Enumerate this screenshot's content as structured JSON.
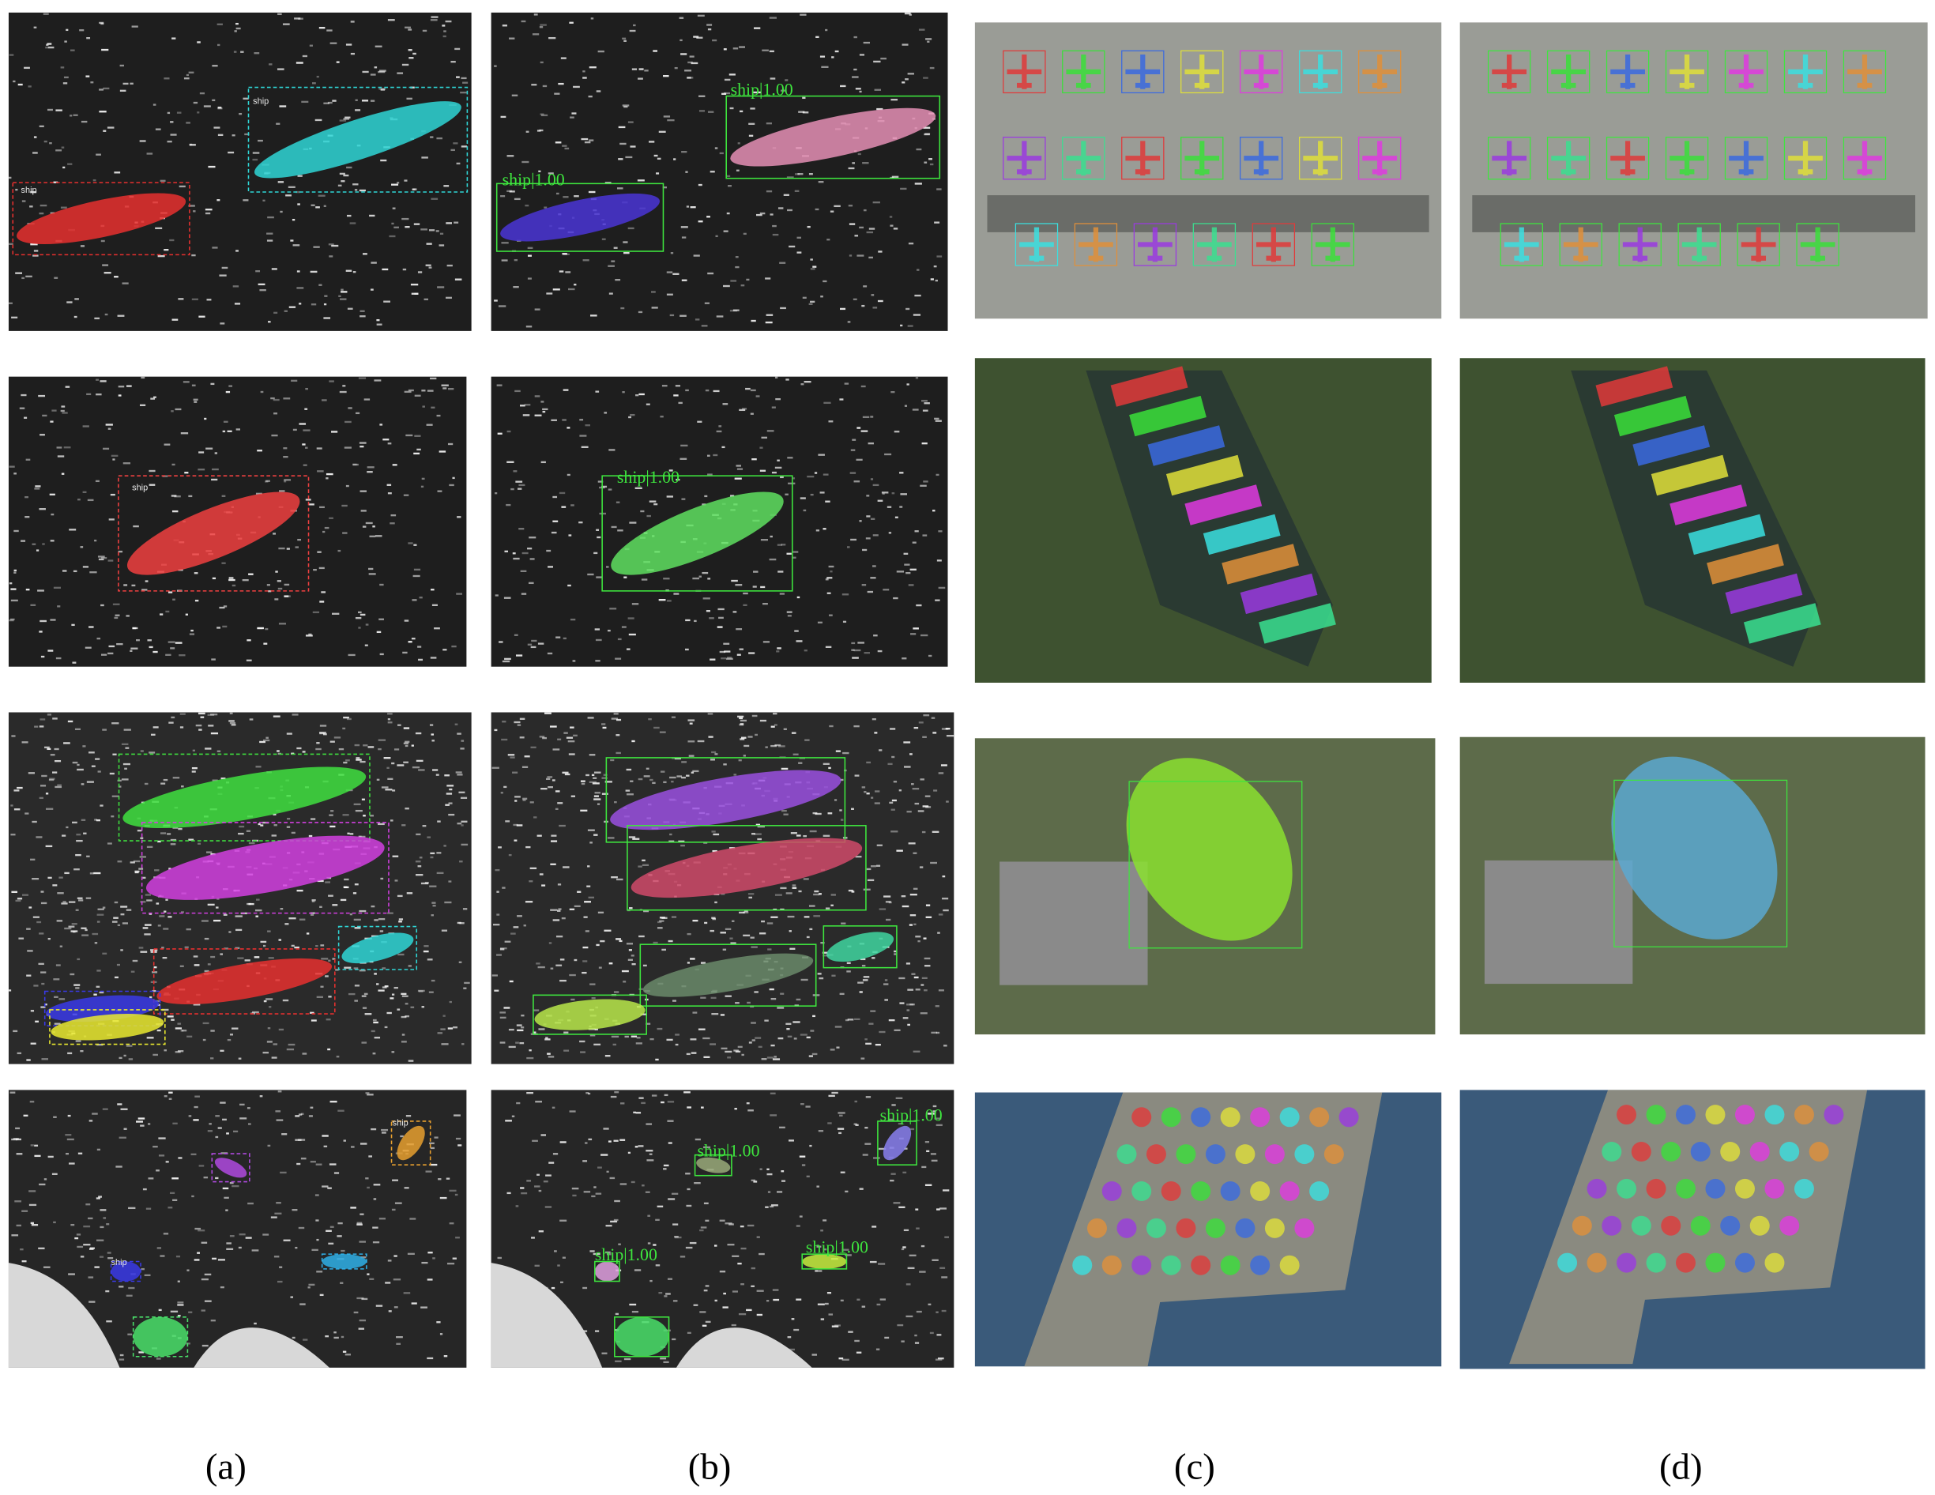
{
  "panels": {
    "a1": {
      "labels": [
        "ship",
        "ship"
      ]
    },
    "b1": {
      "labels": [
        "ship|1.00",
        "ship|1.00"
      ]
    },
    "a2": {
      "labels": [
        "ship"
      ]
    },
    "b2": {
      "labels": [
        "ship|1.00"
      ]
    },
    "a4": {
      "labels": [
        "ship",
        "ship"
      ]
    },
    "b4": {
      "labels": [
        "ship|1.00",
        "ship|1.00",
        "ship|1.00",
        "ship|1.00"
      ]
    }
  },
  "captions": [
    "(a)",
    "(b)",
    "(c)",
    "(d)"
  ]
}
